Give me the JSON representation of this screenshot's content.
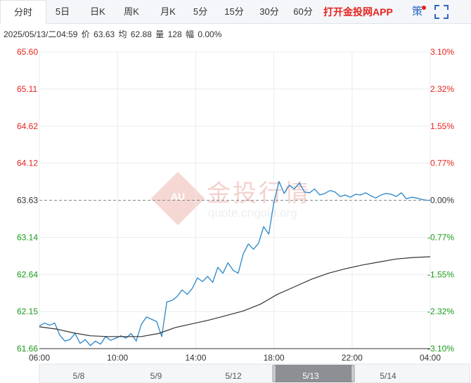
{
  "tabs": [
    {
      "label": "分时",
      "active": true
    },
    {
      "label": "5日"
    },
    {
      "label": "日K"
    },
    {
      "label": "周K"
    },
    {
      "label": "月K"
    },
    {
      "label": "5分"
    },
    {
      "label": "15分"
    },
    {
      "label": "30分"
    },
    {
      "label": "60分"
    }
  ],
  "app_link": "打开金投网APP",
  "strategy_label": "策",
  "fullscreen_icon": "fullscreen-icon",
  "info": {
    "datetime": "2025/05/13/二04:59",
    "price_label": "价",
    "price": "63.63",
    "avg_label": "均",
    "avg": "62.88",
    "volume_label": "量",
    "volume": "128",
    "change_label": "幅",
    "change": "0.00%"
  },
  "watermark": {
    "badge": "AU",
    "cn": "金投行情",
    "en": "quote.cngold.org"
  },
  "colors": {
    "up": "#e5231d",
    "down": "#1a9a1a",
    "price_line": "#2a86c8",
    "avg_line": "#333333",
    "neutral": "#333333"
  },
  "chart_data": {
    "type": "line",
    "ylim": [
      61.66,
      65.6
    ],
    "base_price": 63.63,
    "y_ticks_left": [
      "65.60",
      "65.11",
      "64.62",
      "64.12",
      "63.63",
      "63.14",
      "62.64",
      "62.15",
      "61.66"
    ],
    "y_ticks_right": [
      "3.10%",
      "2.32%",
      "1.55%",
      "0.77%",
      "0.00%",
      "-0.77%",
      "-1.55%",
      "-2.32%",
      "-3.10%"
    ],
    "x_ticks": [
      "06:00",
      "10:00",
      "14:00",
      "18:00",
      "22:00",
      "04:00"
    ],
    "x_range_hours": [
      0,
      23
    ],
    "series": [
      {
        "key": "price",
        "x": [
          0,
          0.3,
          0.6,
          0.9,
          1.2,
          1.5,
          1.8,
          2.1,
          2.4,
          2.7,
          3.0,
          3.3,
          3.6,
          3.9,
          4.2,
          4.5,
          4.8,
          5.1,
          5.4,
          5.7,
          6.0,
          6.3,
          6.6,
          6.9,
          7.2,
          7.5,
          7.8,
          8.1,
          8.4,
          8.7,
          9.0,
          9.3,
          9.6,
          9.9,
          10.2,
          10.5,
          10.8,
          11.1,
          11.4,
          11.7,
          12.0,
          12.3,
          12.6,
          12.9,
          13.2,
          13.5,
          13.8,
          14.1,
          14.4,
          14.7,
          15.0,
          15.3,
          15.6,
          15.9,
          16.2,
          16.5,
          16.8,
          17.1,
          17.4,
          17.7,
          18.0,
          18.3,
          18.6,
          18.9,
          19.2,
          19.5,
          19.8,
          20.1,
          20.4,
          20.7,
          21.0,
          21.3,
          21.6,
          21.9,
          22.2,
          22.5,
          22.8,
          23.0
        ],
        "values": [
          61.96,
          62.0,
          61.97,
          62.0,
          61.84,
          61.76,
          61.78,
          61.86,
          61.73,
          61.78,
          61.7,
          61.76,
          61.72,
          61.82,
          61.77,
          61.8,
          61.83,
          61.8,
          61.86,
          61.76,
          61.98,
          62.08,
          62.05,
          62.02,
          61.82,
          62.28,
          62.3,
          62.35,
          62.44,
          62.38,
          62.46,
          62.6,
          62.55,
          62.62,
          62.54,
          62.74,
          62.66,
          62.8,
          62.7,
          62.66,
          62.92,
          63.05,
          62.98,
          63.06,
          63.28,
          63.18,
          63.6,
          63.88,
          63.72,
          63.83,
          63.78,
          63.86,
          63.74,
          63.73,
          63.78,
          63.7,
          63.72,
          63.76,
          63.74,
          63.68,
          63.7,
          63.67,
          63.71,
          63.7,
          63.73,
          63.69,
          63.66,
          63.7,
          63.72,
          63.71,
          63.68,
          63.73,
          63.65,
          63.67,
          63.66,
          63.64,
          63.63,
          63.63
        ]
      },
      {
        "key": "average",
        "x": [
          0,
          1,
          2,
          3,
          4,
          5,
          6,
          7,
          8,
          9,
          10,
          11,
          12,
          13,
          14,
          15,
          16,
          17,
          18,
          19,
          20,
          21,
          22,
          23
        ],
        "values": [
          61.95,
          61.92,
          61.87,
          61.83,
          61.82,
          61.82,
          61.82,
          61.86,
          61.94,
          61.99,
          62.04,
          62.1,
          62.16,
          62.25,
          62.38,
          62.48,
          62.58,
          62.66,
          62.72,
          62.77,
          62.81,
          62.85,
          62.87,
          62.88
        ]
      }
    ],
    "navigator": {
      "labels": [
        "5/8",
        "5/9",
        "5/12",
        "5/13",
        "5/14"
      ],
      "selected_label": "5/13"
    }
  }
}
